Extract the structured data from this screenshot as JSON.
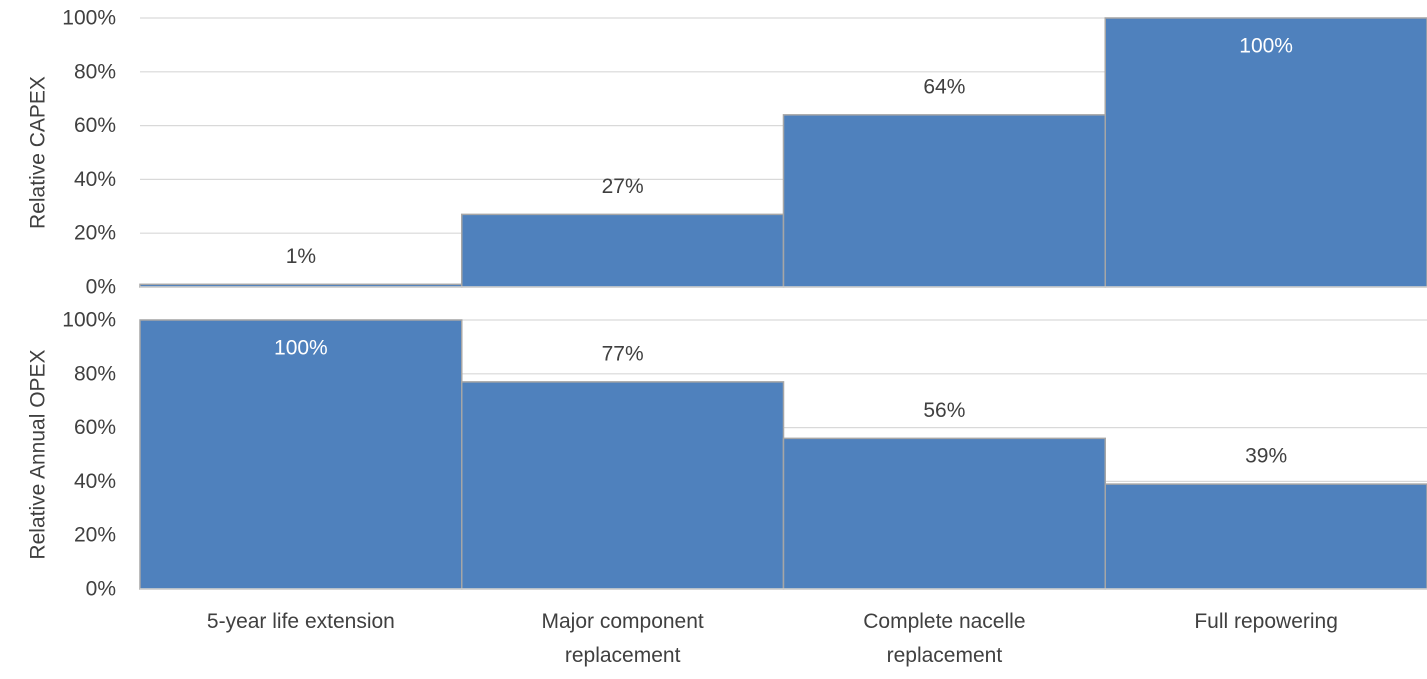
{
  "chart_data": {
    "type": "bar",
    "categories": [
      "5-year life extension",
      "Major component replacement",
      "Complete nacelle replacement",
      "Full repowering"
    ],
    "category_lines": [
      [
        "5-year life extension"
      ],
      [
        "Major component",
        "replacement"
      ],
      [
        "Complete nacelle",
        "replacement"
      ],
      [
        "Full repowering"
      ]
    ],
    "panels": [
      {
        "ylabel": "Relative CAPEX",
        "ylim": [
          0,
          100
        ],
        "yticks": [
          "0%",
          "20%",
          "40%",
          "60%",
          "80%",
          "100%"
        ],
        "values": [
          1,
          27,
          64,
          100
        ],
        "data_labels": [
          "1%",
          "27%",
          "64%",
          "100%"
        ]
      },
      {
        "ylabel": "Relative Annual OPEX",
        "ylim": [
          0,
          100
        ],
        "yticks": [
          "0%",
          "20%",
          "40%",
          "60%",
          "80%",
          "100%"
        ],
        "values": [
          100,
          77,
          56,
          39
        ],
        "data_labels": [
          "100%",
          "77%",
          "56%",
          "39%"
        ]
      }
    ],
    "grid": true,
    "bar_color": "#4f81bd",
    "bar_edge_color": "#a6a6a6",
    "grid_color": "#d9d9d9",
    "text_color": "#404040",
    "inside_label_color": "#ffffff"
  }
}
